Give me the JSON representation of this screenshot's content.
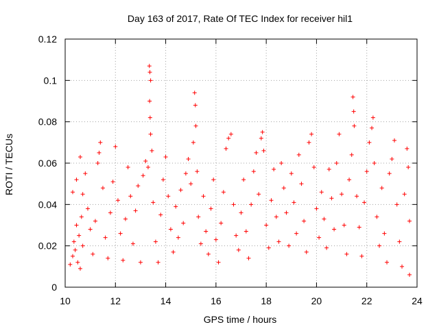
{
  "chart_data": {
    "type": "scatter",
    "title": "Day 163 of 2017, Rate Of TEC Index for receiver hil1",
    "xlabel": "GPS time / hours",
    "ylabel": "ROTI / TECUs",
    "xlim": [
      10,
      24
    ],
    "ylim": [
      0,
      0.12
    ],
    "xticks": [
      "10",
      "12",
      "14",
      "16",
      "18",
      "20",
      "22",
      "24"
    ],
    "yticks": [
      "0",
      "0.02",
      "0.04",
      "0.06",
      "0.08",
      "0.1",
      "0.12"
    ],
    "grid": true,
    "marker": "plus",
    "color": "#ff0000",
    "series": [
      {
        "points": [
          [
            10.2,
            0.011
          ],
          [
            10.3,
            0.015
          ],
          [
            10.35,
            0.022
          ],
          [
            10.4,
            0.018
          ],
          [
            10.45,
            0.03
          ],
          [
            10.5,
            0.012
          ],
          [
            10.55,
            0.025
          ],
          [
            10.6,
            0.009
          ],
          [
            10.65,
            0.034
          ],
          [
            10.7,
            0.02
          ],
          [
            10.3,
            0.046
          ],
          [
            10.45,
            0.052
          ],
          [
            10.6,
            0.063
          ],
          [
            10.7,
            0.045
          ],
          [
            10.8,
            0.055
          ],
          [
            10.9,
            0.038
          ],
          [
            11.0,
            0.028
          ],
          [
            11.1,
            0.016
          ],
          [
            11.2,
            0.032
          ],
          [
            11.3,
            0.06
          ],
          [
            11.35,
            0.065
          ],
          [
            11.4,
            0.07
          ],
          [
            11.5,
            0.048
          ],
          [
            11.6,
            0.024
          ],
          [
            11.7,
            0.014
          ],
          [
            11.8,
            0.036
          ],
          [
            11.9,
            0.051
          ],
          [
            12.0,
            0.068
          ],
          [
            12.1,
            0.042
          ],
          [
            12.2,
            0.026
          ],
          [
            12.3,
            0.013
          ],
          [
            12.4,
            0.033
          ],
          [
            12.5,
            0.058
          ],
          [
            12.6,
            0.044
          ],
          [
            12.7,
            0.021
          ],
          [
            12.8,
            0.037
          ],
          [
            12.9,
            0.049
          ],
          [
            13.0,
            0.012
          ],
          [
            13.1,
            0.054
          ],
          [
            13.2,
            0.061
          ],
          [
            13.35,
            0.107
          ],
          [
            13.37,
            0.104
          ],
          [
            13.4,
            0.1
          ],
          [
            13.36,
            0.09
          ],
          [
            13.38,
            0.082
          ],
          [
            13.4,
            0.074
          ],
          [
            13.45,
            0.066
          ],
          [
            13.3,
            0.058
          ],
          [
            13.5,
            0.041
          ],
          [
            13.6,
            0.022
          ],
          [
            13.7,
            0.012
          ],
          [
            13.8,
            0.035
          ],
          [
            13.9,
            0.052
          ],
          [
            14.0,
            0.063
          ],
          [
            14.1,
            0.044
          ],
          [
            14.2,
            0.028
          ],
          [
            14.3,
            0.017
          ],
          [
            14.4,
            0.039
          ],
          [
            14.5,
            0.024
          ],
          [
            14.6,
            0.047
          ],
          [
            14.7,
            0.031
          ],
          [
            14.8,
            0.055
          ],
          [
            14.9,
            0.062
          ],
          [
            15.0,
            0.05
          ],
          [
            15.1,
            0.07
          ],
          [
            15.15,
            0.094
          ],
          [
            15.18,
            0.088
          ],
          [
            15.2,
            0.078
          ],
          [
            15.25,
            0.056
          ],
          [
            15.3,
            0.034
          ],
          [
            15.4,
            0.021
          ],
          [
            15.5,
            0.044
          ],
          [
            15.6,
            0.027
          ],
          [
            15.7,
            0.016
          ],
          [
            15.8,
            0.038
          ],
          [
            15.9,
            0.052
          ],
          [
            16.0,
            0.023
          ],
          [
            16.1,
            0.012
          ],
          [
            16.2,
            0.031
          ],
          [
            16.3,
            0.046
          ],
          [
            16.4,
            0.067
          ],
          [
            16.5,
            0.072
          ],
          [
            16.6,
            0.074
          ],
          [
            16.7,
            0.04
          ],
          [
            16.8,
            0.025
          ],
          [
            16.9,
            0.018
          ],
          [
            17.0,
            0.036
          ],
          [
            17.1,
            0.052
          ],
          [
            17.2,
            0.027
          ],
          [
            17.3,
            0.014
          ],
          [
            17.4,
            0.04
          ],
          [
            17.5,
            0.056
          ],
          [
            17.6,
            0.065
          ],
          [
            17.7,
            0.045
          ],
          [
            17.8,
            0.072
          ],
          [
            17.85,
            0.075
          ],
          [
            17.9,
            0.066
          ],
          [
            18.0,
            0.03
          ],
          [
            18.1,
            0.019
          ],
          [
            18.2,
            0.042
          ],
          [
            18.3,
            0.057
          ],
          [
            18.4,
            0.034
          ],
          [
            18.5,
            0.022
          ],
          [
            18.6,
            0.06
          ],
          [
            18.7,
            0.048
          ],
          [
            18.8,
            0.036
          ],
          [
            18.9,
            0.02
          ],
          [
            19.0,
            0.055
          ],
          [
            19.1,
            0.041
          ],
          [
            19.2,
            0.026
          ],
          [
            19.3,
            0.064
          ],
          [
            19.4,
            0.05
          ],
          [
            19.5,
            0.032
          ],
          [
            19.6,
            0.017
          ],
          [
            19.7,
            0.07
          ],
          [
            19.8,
            0.074
          ],
          [
            19.9,
            0.058
          ],
          [
            20.0,
            0.038
          ],
          [
            20.1,
            0.024
          ],
          [
            20.2,
            0.046
          ],
          [
            20.3,
            0.033
          ],
          [
            20.4,
            0.019
          ],
          [
            20.5,
            0.057
          ],
          [
            20.6,
            0.043
          ],
          [
            20.7,
            0.028
          ],
          [
            20.8,
            0.06
          ],
          [
            20.9,
            0.074
          ],
          [
            21.0,
            0.045
          ],
          [
            21.1,
            0.03
          ],
          [
            21.2,
            0.016
          ],
          [
            21.3,
            0.052
          ],
          [
            21.4,
            0.064
          ],
          [
            21.45,
            0.092
          ],
          [
            21.48,
            0.085
          ],
          [
            21.5,
            0.078
          ],
          [
            21.6,
            0.044
          ],
          [
            21.7,
            0.029
          ],
          [
            21.8,
            0.015
          ],
          [
            21.9,
            0.041
          ],
          [
            22.0,
            0.056
          ],
          [
            22.1,
            0.07
          ],
          [
            22.2,
            0.077
          ],
          [
            22.25,
            0.082
          ],
          [
            22.3,
            0.06
          ],
          [
            22.4,
            0.034
          ],
          [
            22.5,
            0.02
          ],
          [
            22.6,
            0.048
          ],
          [
            22.7,
            0.026
          ],
          [
            22.8,
            0.012
          ],
          [
            22.9,
            0.055
          ],
          [
            23.0,
            0.062
          ],
          [
            23.1,
            0.071
          ],
          [
            23.2,
            0.04
          ],
          [
            23.3,
            0.022
          ],
          [
            23.4,
            0.01
          ],
          [
            23.5,
            0.045
          ],
          [
            23.6,
            0.067
          ],
          [
            23.65,
            0.058
          ],
          [
            23.7,
            0.032
          ],
          [
            23.7,
            0.006
          ]
        ]
      }
    ]
  }
}
